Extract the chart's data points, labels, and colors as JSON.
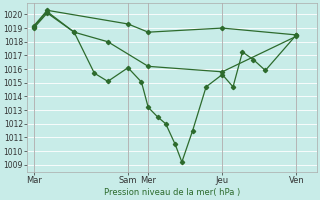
{
  "background_color": "#c8ece8",
  "grid_color": "#b8d8d4",
  "line_color": "#2d6b2d",
  "ylabel": "Pression niveau de la mer( hPa )",
  "ylim_min": 1008.5,
  "ylim_max": 1020.8,
  "yticks": [
    1009,
    1010,
    1011,
    1012,
    1013,
    1014,
    1015,
    1016,
    1017,
    1018,
    1019,
    1020
  ],
  "xtick_labels": [
    "Mar",
    "Sam",
    "Mer",
    "Jeu",
    "Ven"
  ],
  "xtick_positions": [
    0,
    7,
    8.5,
    14,
    19.5
  ],
  "xmax": 21,
  "xmin": -0.5,
  "line1_x": [
    0,
    1,
    7,
    8.5,
    14,
    19.5
  ],
  "line1_y": [
    1019.15,
    1020.3,
    1019.3,
    1018.7,
    1019.0,
    1018.5
  ],
  "line2_x": [
    0,
    1,
    3,
    4.5,
    5.5,
    7,
    8,
    8.5,
    9.2,
    9.8,
    10.5,
    11.0,
    11.8,
    12.8,
    14,
    14.8,
    15.5,
    16.3,
    17.2,
    19.5
  ],
  "line2_y": [
    1019.1,
    1020.2,
    1018.7,
    1015.7,
    1015.1,
    1016.1,
    1015.05,
    1013.2,
    1012.5,
    1012.0,
    1010.5,
    1009.2,
    1011.5,
    1014.7,
    1015.6,
    1014.7,
    1017.25,
    1016.7,
    1015.9,
    1018.5
  ],
  "line3_x": [
    0,
    1,
    3,
    5.5,
    8.5,
    14,
    19.5
  ],
  "line3_y": [
    1019.0,
    1020.1,
    1018.7,
    1018.0,
    1016.2,
    1015.8,
    1018.4
  ],
  "marker_size": 2.2,
  "line_width": 0.9,
  "tick_fontsize": 5.5,
  "xlabel_fontsize": 6.0
}
